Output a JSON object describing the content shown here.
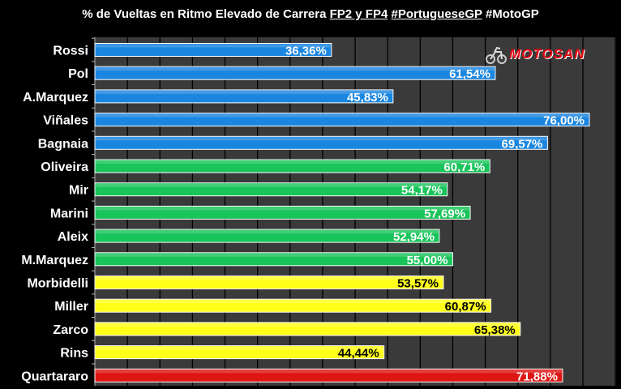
{
  "title": {
    "prefix": "% de Vueltas en Ritmo Elevado de Carrera ",
    "sessions": "FP2 y FP4",
    "hashtag_gp": "#PortugueseGP",
    "hashtag_series": "#MotoGP"
  },
  "logo": {
    "text": "MOTOSAN",
    "color": "#e30613"
  },
  "chart_data": {
    "type": "bar",
    "orientation": "horizontal",
    "categories": [
      "Rossi",
      "Pol",
      "A.Marquez",
      "Viñales",
      "Bagnaia",
      "Oliveira",
      "Mir",
      "Marini",
      "Aleix",
      "M.Marquez",
      "Morbidelli",
      "Miller",
      "Zarco",
      "Rins",
      "Quartararo"
    ],
    "values": [
      36.36,
      61.54,
      45.83,
      76.0,
      69.57,
      60.71,
      54.17,
      57.69,
      52.94,
      55.0,
      53.57,
      60.87,
      65.38,
      44.44,
      71.88
    ],
    "value_labels": [
      "36,36%",
      "61,54%",
      "45,83%",
      "76,00%",
      "69,57%",
      "60,71%",
      "54,17%",
      "57,69%",
      "52,94%",
      "55,00%",
      "53,57%",
      "60,87%",
      "65,38%",
      "44,44%",
      "71,88%"
    ],
    "bar_colors": [
      "#1a86e0",
      "#1a86e0",
      "#1a86e0",
      "#1a86e0",
      "#1a86e0",
      "#19c45a",
      "#19c45a",
      "#19c45a",
      "#19c45a",
      "#19c45a",
      "#ffff1a",
      "#ffff1a",
      "#ffff1a",
      "#ffff1a",
      "#dd1515"
    ],
    "label_colors": [
      "#ffffff",
      "#ffffff",
      "#ffffff",
      "#ffffff",
      "#ffffff",
      "#ffffff",
      "#ffffff",
      "#ffffff",
      "#ffffff",
      "#ffffff",
      "#000000",
      "#000000",
      "#000000",
      "#000000",
      "#ffffff"
    ],
    "xlim": [
      0,
      80
    ],
    "grid": true
  }
}
